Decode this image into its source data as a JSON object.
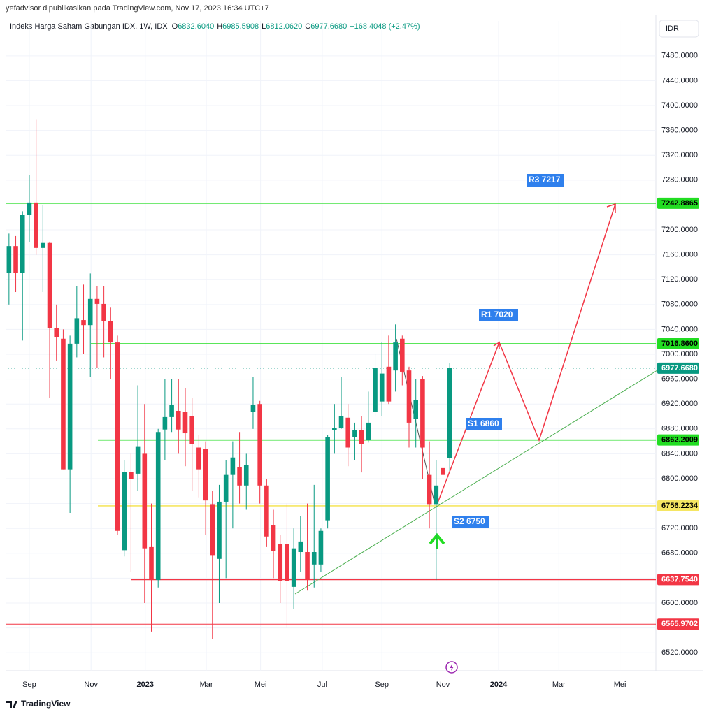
{
  "header": {
    "published": "yefadvisor dipublikasikan pada TradingView.com, Nov 17, 2023 16:34 UTC+7",
    "symbol": "Indeks Harga Saham Gabungan IDX, 1W, IDX",
    "ohlc": [
      {
        "label": "O",
        "value": "6832.6040"
      },
      {
        "label": "H",
        "value": "6985.5908"
      },
      {
        "label": "L",
        "value": "6812.0620"
      },
      {
        "label": "C",
        "value": "6977.6680"
      }
    ],
    "change": "+168.4048 (+2.47%)",
    "currency": "IDR"
  },
  "footer": {
    "brand": "TradingView"
  },
  "chart_data": {
    "type": "candlestick",
    "grid": true,
    "up_color": "#089981",
    "down_color": "#f23645",
    "open": [
      7131,
      7174,
      7131,
      7224,
      7244,
      7171,
      7179,
      7042,
      7025,
      6815,
      7017,
      7055,
      7047,
      7089,
      7081,
      7053,
      7019,
      6685,
      6811,
      6808,
      6840,
      6690,
      6637,
      6879,
      6899,
      6909,
      6907,
      6901,
      6850,
      6848,
      6758,
      6671,
      6763,
      6806,
      6819,
      6789,
      6907,
      6920,
      6789,
      6725,
      6695,
      6695,
      6626,
      6682,
      6682,
      6662,
      6662,
      6733,
      6878,
      6882,
      6898,
      6867,
      6878,
      6862,
      6907,
      6924,
      6980,
      6974,
      7025,
      6974,
      6896,
      6960,
      6806,
      6758,
      6817,
      6832.604
    ],
    "high": [
      7194,
      7190,
      7230,
      7288,
      7377,
      7240,
      7181,
      7080,
      7040,
      7030,
      7110,
      7112,
      7130,
      7110,
      7110,
      7075,
      7030,
      6830,
      6840,
      6950,
      6920,
      6760,
      6880,
      6960,
      6960,
      6960,
      6945,
      6930,
      6870,
      6860,
      6780,
      6790,
      6830,
      6860,
      6875,
      6840,
      6963,
      6925,
      6800,
      6750,
      6710,
      6760,
      6720,
      6740,
      6760,
      6790,
      6720,
      6870,
      6920,
      6963,
      6920,
      6890,
      6900,
      6940,
      7000,
      7020,
      7030,
      7048,
      7030,
      6980,
      6960,
      6965,
      6860,
      6830,
      6830,
      6985.5908
    ],
    "low": [
      7080,
      7100,
      7022,
      7180,
      7160,
      7100,
      6930,
      6990,
      6815,
      6745,
      6995,
      7000,
      6964,
      6978,
      6995,
      6960,
      6710,
      6675,
      6650,
      6780,
      6600,
      6554,
      6625,
      6830,
      6875,
      6840,
      6820,
      6780,
      6770,
      6710,
      6542,
      6600,
      6640,
      6720,
      6760,
      6750,
      6880,
      6760,
      6690,
      6640,
      6600,
      6560,
      6590,
      6650,
      6620,
      6625,
      6650,
      6720,
      6840,
      6880,
      6820,
      6830,
      6810,
      6858,
      6900,
      6900,
      6920,
      6940,
      6950,
      6850,
      6850,
      6800,
      6720,
      6637,
      6790,
      6812.062
    ],
    "close": [
      7174,
      7131,
      7224,
      7244,
      7171,
      7179,
      7042,
      7028,
      6815,
      7017,
      7058,
      7047,
      7089,
      7081,
      7053,
      7019,
      6716,
      6811,
      6800,
      6851,
      6688,
      6637,
      6875,
      6899,
      6918,
      6879,
      6873,
      6856,
      6815,
      6765,
      6676,
      6763,
      6806,
      6834,
      6789,
      6822,
      6918,
      6789,
      6707,
      6684,
      6635,
      6635,
      6688,
      6699,
      6637,
      6682,
      6716,
      6867,
      6882,
      6901,
      6850,
      6878,
      6856,
      6890,
      6978,
      6969,
      6924,
      7019,
      6972,
      6890,
      6926,
      6850,
      6758,
      6789,
      6806,
      6977.668
    ],
    "xlim": [
      -0.5,
      95.4
    ],
    "xticks": [
      {
        "value": 3,
        "label": "Sep"
      },
      {
        "value": 12.1,
        "label": "Nov"
      },
      {
        "value": 20.1,
        "label": "2023"
      },
      {
        "value": 29.1,
        "label": "Mar"
      },
      {
        "value": 37.1,
        "label": "Mei"
      },
      {
        "value": 46.2,
        "label": "Jul"
      },
      {
        "value": 55,
        "label": "Sep"
      },
      {
        "value": 64,
        "label": "Nov"
      },
      {
        "value": 72.2,
        "label": "2024"
      },
      {
        "value": 81.1,
        "label": "Mar"
      },
      {
        "value": 90.1,
        "label": "Mei"
      }
    ],
    "ylim": [
      6491,
      7536
    ],
    "yticks": [
      {
        "value": 6520,
        "label": "6520.0000"
      },
      {
        "value": 6560,
        "label": "6560.0000"
      },
      {
        "value": 6600,
        "label": "6600.0000"
      },
      {
        "value": 6640,
        "label": "6640.0000"
      },
      {
        "value": 6680,
        "label": "6680.0000"
      },
      {
        "value": 6720,
        "label": "6720.0000"
      },
      {
        "value": 6760,
        "label": "6760.0000"
      },
      {
        "value": 6800,
        "label": "6800.0000"
      },
      {
        "value": 6840,
        "label": "6840.0000"
      },
      {
        "value": 6880,
        "label": "6880.0000"
      },
      {
        "value": 6920,
        "label": "6920.0000"
      },
      {
        "value": 6960,
        "label": "6960.0000"
      },
      {
        "value": 7000,
        "label": "7000.0000"
      },
      {
        "value": 7040,
        "label": "7040.0000"
      },
      {
        "value": 7080,
        "label": "7080.0000"
      },
      {
        "value": 7120,
        "label": "7120.0000"
      },
      {
        "value": 7160,
        "label": "7160.0000"
      },
      {
        "value": 7200,
        "label": "7200.0000"
      },
      {
        "value": 7240,
        "label": "7240.0000"
      },
      {
        "value": 7280,
        "label": "7280.0000"
      },
      {
        "value": 7320,
        "label": "7320.0000"
      },
      {
        "value": 7360,
        "label": "7360.0000"
      },
      {
        "value": 7400,
        "label": "7400.0000"
      },
      {
        "value": 7440,
        "label": "7440.0000"
      },
      {
        "value": 7480,
        "label": "7480.0000"
      }
    ],
    "levels": [
      {
        "value": 7242.8865,
        "label": "7242.8865",
        "color": "#22dd22"
      },
      {
        "value": 7016.86,
        "label": "7016.8600",
        "color": "#22dd22"
      },
      {
        "value": 6977.668,
        "label": "6977.6680",
        "color": "#089981"
      },
      {
        "value": 6862.2009,
        "label": "6862.2009",
        "color": "#22dd22"
      },
      {
        "value": 6756.2234,
        "label": "6756.2234",
        "color": "#f5e663"
      },
      {
        "value": 6637.754,
        "label": "6637.7540",
        "color": "#f23645"
      },
      {
        "value": 6565.9702,
        "label": "6565.9702",
        "color": "#f23645"
      }
    ],
    "annotations": [
      "R3 7217",
      "R1 7020",
      "S1 6860",
      "S2 6750"
    ]
  }
}
